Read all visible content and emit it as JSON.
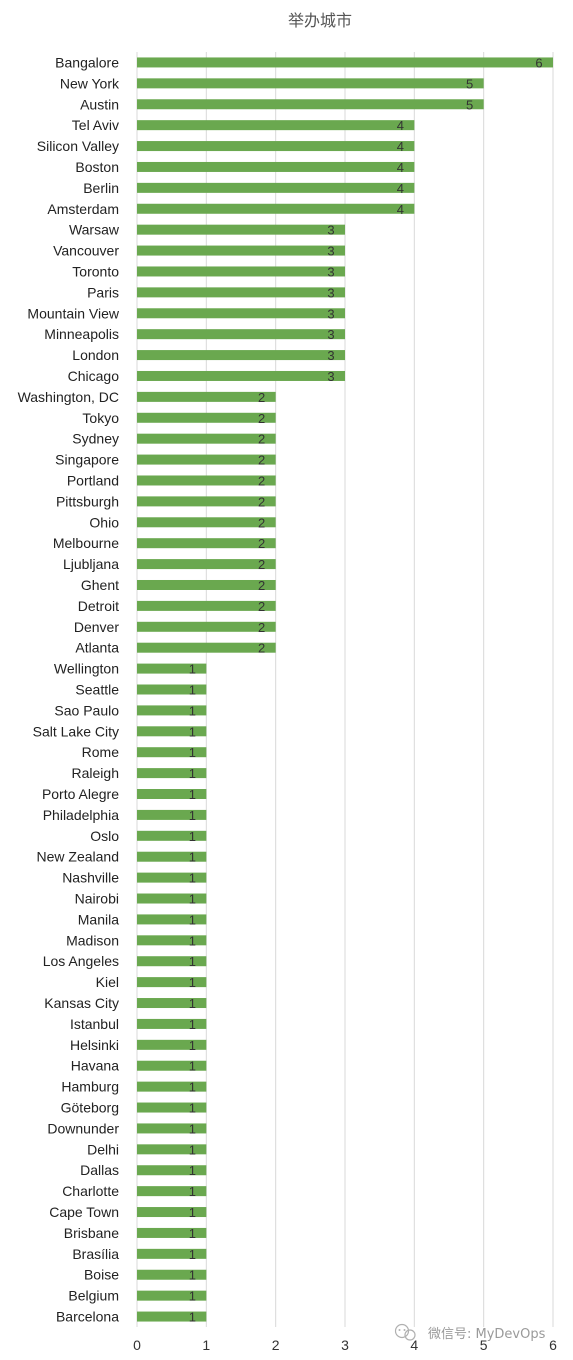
{
  "chart_data": {
    "type": "bar",
    "orientation": "horizontal",
    "title": "举办城市",
    "categories": [
      "Bangalore",
      "New York",
      "Austin",
      "Tel Aviv",
      "Silicon Valley",
      "Boston",
      "Berlin",
      "Amsterdam",
      "Warsaw",
      "Vancouver",
      "Toronto",
      "Paris",
      "Mountain View",
      "Minneapolis",
      "London",
      "Chicago",
      "Washington, DC",
      "Tokyo",
      "Sydney",
      "Singapore",
      "Portland",
      "Pittsburgh",
      "Ohio",
      "Melbourne",
      "Ljubljana",
      "Ghent",
      "Detroit",
      "Denver",
      "Atlanta",
      "Wellington",
      "Seattle",
      "Sao Paulo",
      "Salt Lake City",
      "Rome",
      "Raleigh",
      "Porto Alegre",
      "Philadelphia",
      "Oslo",
      "New Zealand",
      "Nashville",
      "Nairobi",
      "Manila",
      "Madison",
      "Los Angeles",
      "Kiel",
      "Kansas City",
      "Istanbul",
      "Helsinki",
      "Havana",
      "Hamburg",
      "Göteborg",
      "Downunder",
      "Delhi",
      "Dallas",
      "Charlotte",
      "Cape Town",
      "Brisbane",
      "Brasília",
      "Boise",
      "Belgium",
      "Barcelona"
    ],
    "values": [
      6,
      5,
      5,
      4,
      4,
      4,
      4,
      4,
      3,
      3,
      3,
      3,
      3,
      3,
      3,
      3,
      2,
      2,
      2,
      2,
      2,
      2,
      2,
      2,
      2,
      2,
      2,
      2,
      2,
      1,
      1,
      1,
      1,
      1,
      1,
      1,
      1,
      1,
      1,
      1,
      1,
      1,
      1,
      1,
      1,
      1,
      1,
      1,
      1,
      1,
      1,
      1,
      1,
      1,
      1,
      1,
      1,
      1,
      1,
      1,
      1
    ],
    "xticks": [
      "0",
      "1",
      "2",
      "3",
      "4",
      "5",
      "6"
    ],
    "xlim": [
      0,
      6
    ],
    "grid": true,
    "bar_color": "#6aa84f",
    "data_labels": true
  },
  "watermark": {
    "icon": "wechat-icon",
    "text": "微信号: MyDevOps"
  }
}
